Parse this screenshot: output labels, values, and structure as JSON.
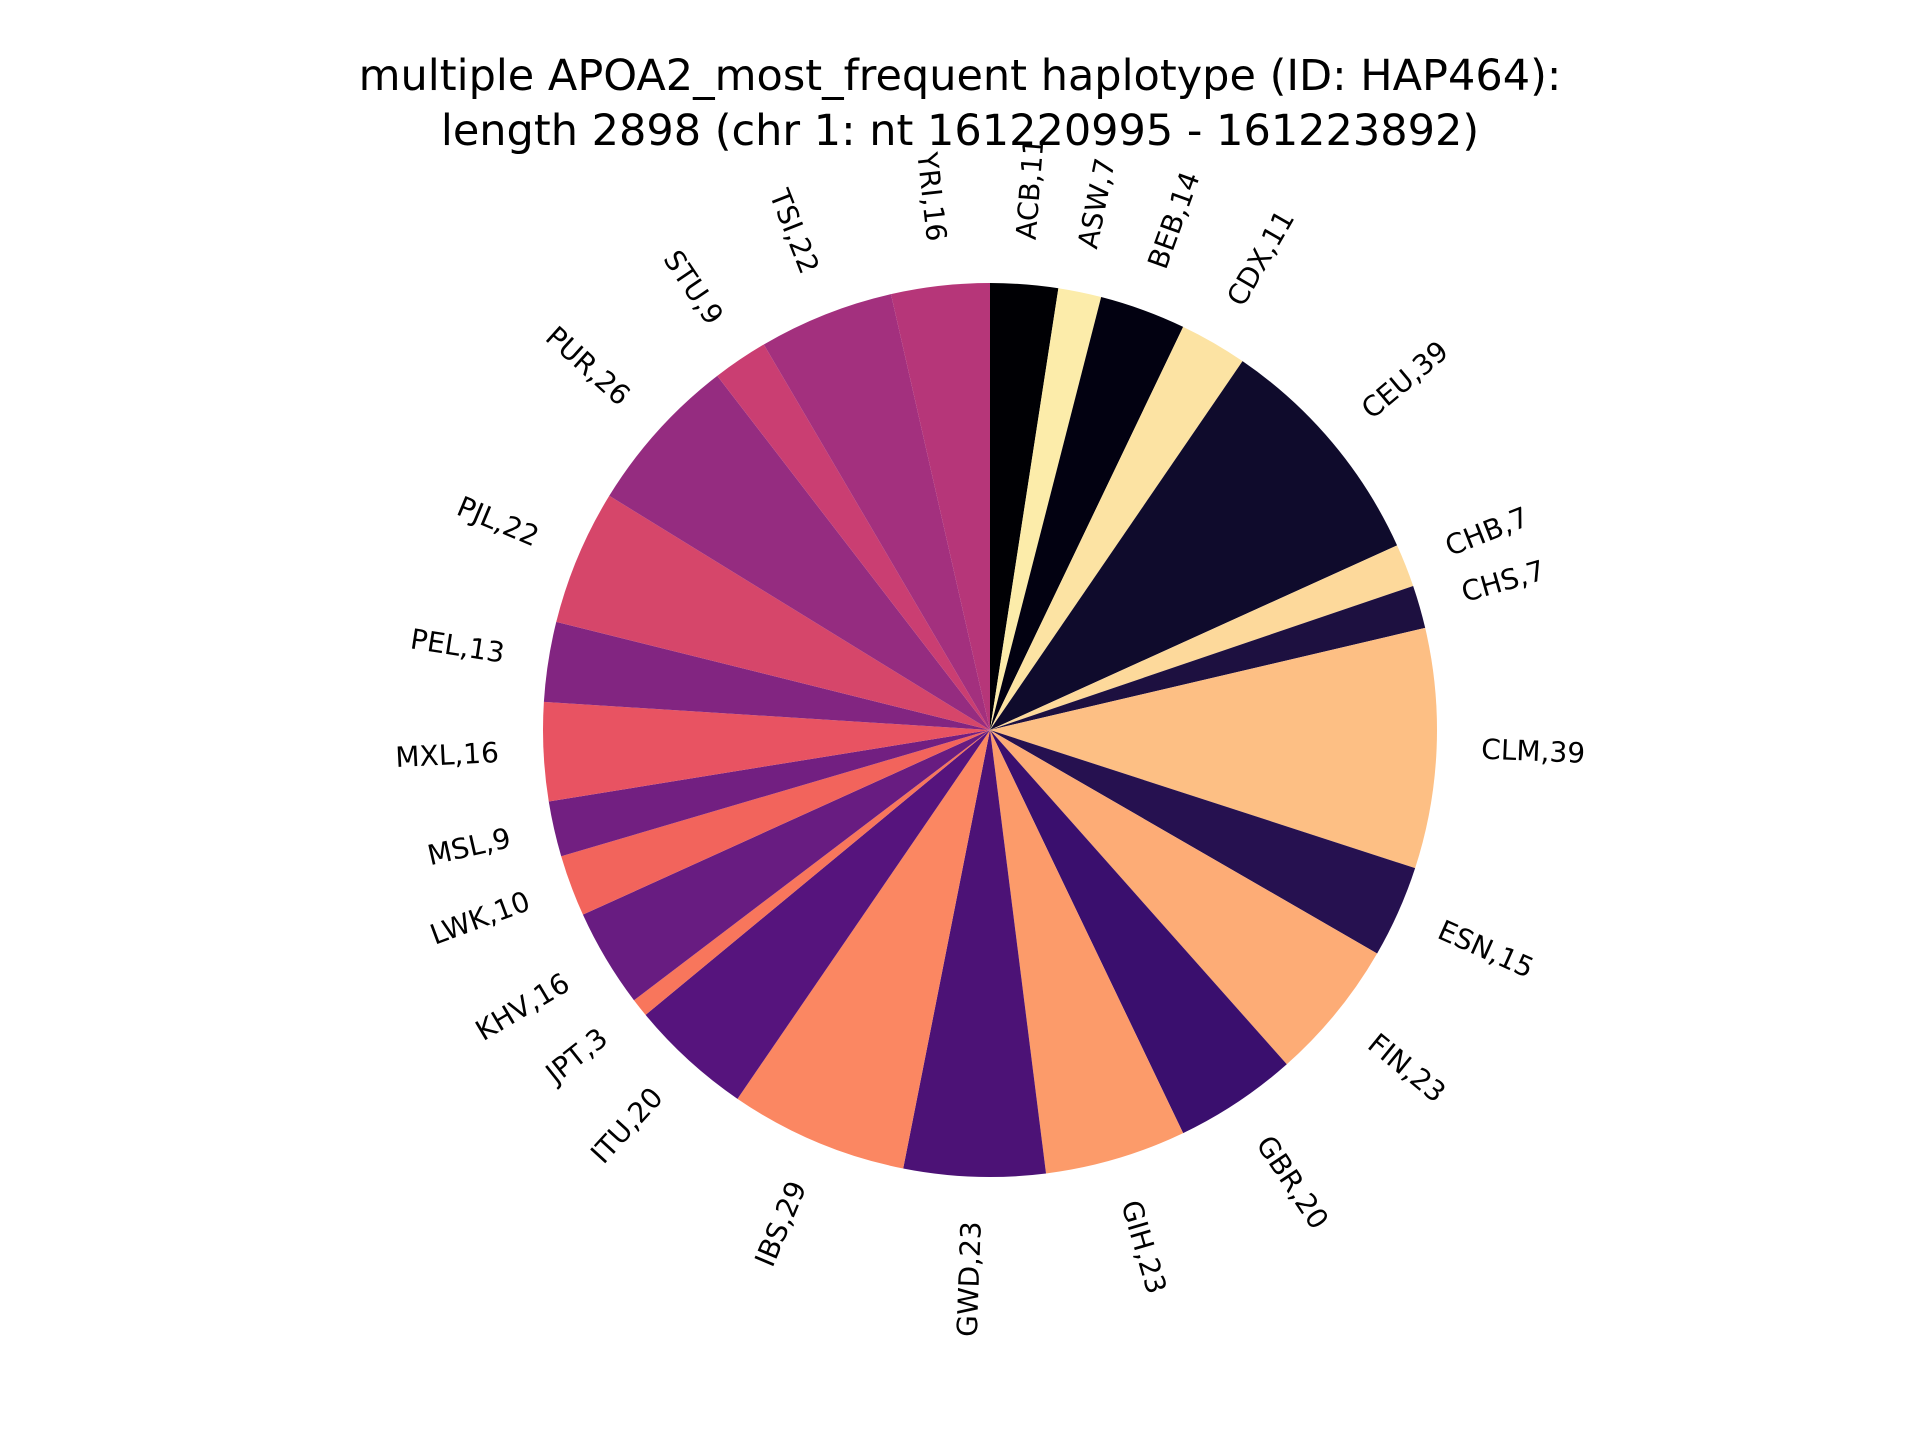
{
  "chart_data": {
    "type": "pie",
    "title_lines": [
      "multiple APOA2_most_frequent haplotype (ID: HAP464):",
      "length 2898 (chr 1: nt 161220995 - 161223892)"
    ],
    "start": "top",
    "direction": "clockwise",
    "slices": [
      {
        "label": "ACB",
        "value": 11,
        "color": "#000004"
      },
      {
        "label": "ASW",
        "value": 7,
        "color": "#fcecaa"
      },
      {
        "label": "BEB",
        "value": 14,
        "color": "#020111"
      },
      {
        "label": "CDX",
        "value": 11,
        "color": "#fce3a3"
      },
      {
        "label": "CEU",
        "value": 39,
        "color": "#0f0b2c"
      },
      {
        "label": "CHB",
        "value": 7,
        "color": "#fdd99b"
      },
      {
        "label": "CHS",
        "value": 7,
        "color": "#1d1040"
      },
      {
        "label": "CLM",
        "value": 39,
        "color": "#fdbf84"
      },
      {
        "label": "ESN",
        "value": 15,
        "color": "#261150"
      },
      {
        "label": "FIN",
        "value": 23,
        "color": "#fdac76"
      },
      {
        "label": "GBR",
        "value": 20,
        "color": "#3a0f6e"
      },
      {
        "label": "GIH",
        "value": 23,
        "color": "#fc9b6a"
      },
      {
        "label": "GWD",
        "value": 23,
        "color": "#4c1276"
      },
      {
        "label": "IBS",
        "value": 29,
        "color": "#fb8762"
      },
      {
        "label": "ITU",
        "value": 20,
        "color": "#56147d"
      },
      {
        "label": "JPT",
        "value": 3,
        "color": "#f8765c"
      },
      {
        "label": "KHV",
        "value": 16,
        "color": "#681c81"
      },
      {
        "label": "LWK",
        "value": 10,
        "color": "#f2645c"
      },
      {
        "label": "MSL",
        "value": 9,
        "color": "#721f81"
      },
      {
        "label": "MXL",
        "value": 16,
        "color": "#e85362"
      },
      {
        "label": "PEL",
        "value": 13,
        "color": "#822581"
      },
      {
        "label": "PJL",
        "value": 22,
        "color": "#d6466a"
      },
      {
        "label": "PUR",
        "value": 26,
        "color": "#952c80"
      },
      {
        "label": "STU",
        "value": 9,
        "color": "#ca3e72"
      },
      {
        "label": "TSI",
        "value": 22,
        "color": "#a3307e"
      },
      {
        "label": "YRI",
        "value": 16,
        "color": "#b63679"
      }
    ]
  }
}
